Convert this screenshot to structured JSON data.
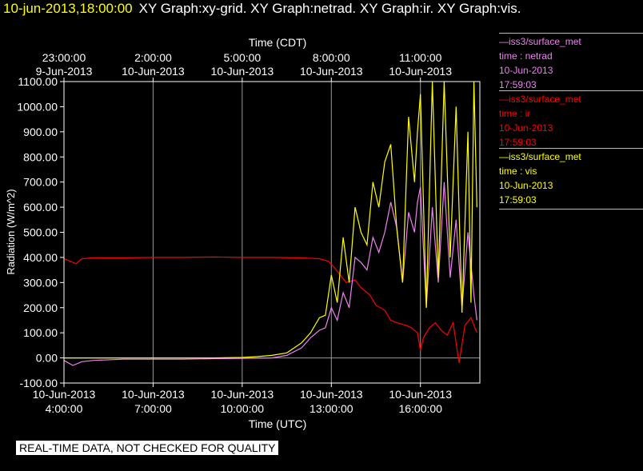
{
  "header": {
    "timestamp": "10-jun-2013,18:00:00",
    "graphs": "XY Graph:xy-grid.  XY Graph:netrad.  XY Graph:ir.  XY Graph:vis."
  },
  "legend": [
    {
      "name": "—iss3/surface_met",
      "field": "time : netrad",
      "date": "10-Jun-2013",
      "time": "17:59:03",
      "color": "#ee82ee"
    },
    {
      "name": "—iss3/surface_met",
      "field": "time : ir",
      "date": "10-Jun-2013",
      "time": "17:59:03",
      "color": "#ff0000"
    },
    {
      "name": "—iss3/surface_met",
      "field": "time : vis",
      "date": "10-Jun-2013",
      "time": "17:59:03",
      "color": "#ffff00"
    }
  ],
  "footer": "REAL-TIME DATA, NOT CHECKED FOR QUALITY",
  "chart_data": {
    "type": "line",
    "ylabel": "Radiation (W/m^2)",
    "xlabel_bottom": "Time (UTC)",
    "xlabel_top": "Time (CDT)",
    "ylim": [
      -100,
      1100
    ],
    "y_ticks": [
      "1100.00",
      "1000.00",
      "900.00",
      "800.00",
      "700.00",
      "600.00",
      "500.00",
      "400.00",
      "300.00",
      "200.00",
      "100.00",
      "0.00",
      "-100.00"
    ],
    "y_tick_values": [
      1100,
      1000,
      900,
      800,
      700,
      600,
      500,
      400,
      300,
      200,
      100,
      0,
      -100
    ],
    "xlim_hours_utc": [
      4.0,
      18.0
    ],
    "x_ticks_bottom": [
      {
        "hour": 4,
        "date": "10-Jun-2013",
        "time": "4:00:00"
      },
      {
        "hour": 7,
        "date": "10-Jun-2013",
        "time": "7:00:00"
      },
      {
        "hour": 10,
        "date": "10-Jun-2013",
        "time": "10:00:00"
      },
      {
        "hour": 13,
        "date": "10-Jun-2013",
        "time": "13:00:00"
      },
      {
        "hour": 16,
        "date": "10-Jun-2013",
        "time": "16:00:00"
      }
    ],
    "x_ticks_top": [
      {
        "hour": 4,
        "time": "23:00:00",
        "date": "9-Jun-2013"
      },
      {
        "hour": 7,
        "time": "2:00:00",
        "date": "10-Jun-2013"
      },
      {
        "hour": 10,
        "time": "5:00:00",
        "date": "10-Jun-2013"
      },
      {
        "hour": 13,
        "time": "8:00:00",
        "date": "10-Jun-2013"
      },
      {
        "hour": 16,
        "time": "11:00:00",
        "date": "10-Jun-2013"
      }
    ],
    "grid": true,
    "series": [
      {
        "name": "ir",
        "color": "#ff0000",
        "x": [
          4.0,
          4.2,
          4.4,
          4.6,
          5.0,
          6.0,
          7.0,
          8.0,
          9.0,
          10.0,
          11.0,
          12.0,
          12.6,
          12.9,
          13.1,
          13.3,
          13.5,
          13.8,
          14.0,
          14.3,
          14.5,
          14.8,
          15.0,
          15.2,
          15.5,
          15.7,
          15.9,
          16.0,
          16.1,
          16.3,
          16.5,
          16.7,
          16.9,
          17.1,
          17.3,
          17.5,
          17.7,
          17.9
        ],
        "values": [
          395,
          385,
          375,
          395,
          398,
          398,
          400,
          400,
          402,
          400,
          400,
          398,
          395,
          385,
          360,
          330,
          300,
          310,
          280,
          250,
          210,
          190,
          150,
          140,
          130,
          120,
          100,
          30,
          80,
          120,
          140,
          110,
          90,
          140,
          -20,
          130,
          160,
          100
        ]
      },
      {
        "name": "netrad",
        "color": "#ee82ee",
        "x": [
          4.0,
          4.3,
          4.6,
          5.0,
          6.0,
          7.0,
          8.0,
          9.0,
          10.0,
          11.0,
          11.5,
          12.0,
          12.3,
          12.6,
          12.8,
          13.0,
          13.2,
          13.4,
          13.6,
          13.8,
          14.0,
          14.2,
          14.4,
          14.6,
          14.8,
          15.0,
          15.2,
          15.4,
          15.6,
          15.8,
          15.9,
          16.0,
          16.2,
          16.4,
          16.6,
          16.8,
          17.0,
          17.2,
          17.4,
          17.6,
          17.8,
          17.9
        ],
        "values": [
          -10,
          -30,
          -15,
          -10,
          -5,
          -5,
          -5,
          -3,
          -2,
          0,
          10,
          40,
          80,
          110,
          120,
          200,
          150,
          260,
          200,
          400,
          380,
          350,
          480,
          420,
          500,
          620,
          520,
          300,
          580,
          500,
          620,
          680,
          200,
          600,
          300,
          700,
          320,
          550,
          200,
          500,
          250,
          150
        ]
      },
      {
        "name": "vis",
        "color": "#ffff00",
        "x": [
          4.0,
          4.5,
          5.0,
          6.0,
          7.0,
          8.0,
          9.0,
          10.0,
          10.5,
          11.0,
          11.5,
          12.0,
          12.3,
          12.6,
          12.8,
          13.0,
          13.2,
          13.4,
          13.6,
          13.8,
          14.0,
          14.2,
          14.4,
          14.6,
          14.8,
          15.0,
          15.2,
          15.4,
          15.6,
          15.8,
          15.9,
          16.0,
          16.2,
          16.4,
          16.6,
          16.8,
          17.0,
          17.2,
          17.4,
          17.6,
          17.7,
          17.8,
          17.9
        ],
        "values": [
          0,
          0,
          0,
          0,
          0,
          0,
          0,
          2,
          5,
          10,
          20,
          60,
          100,
          160,
          170,
          330,
          220,
          480,
          300,
          600,
          500,
          450,
          700,
          600,
          780,
          850,
          520,
          300,
          960,
          700,
          900,
          1050,
          200,
          1100,
          320,
          1100,
          400,
          1000,
          180,
          900,
          220,
          1100,
          600
        ]
      }
    ]
  }
}
